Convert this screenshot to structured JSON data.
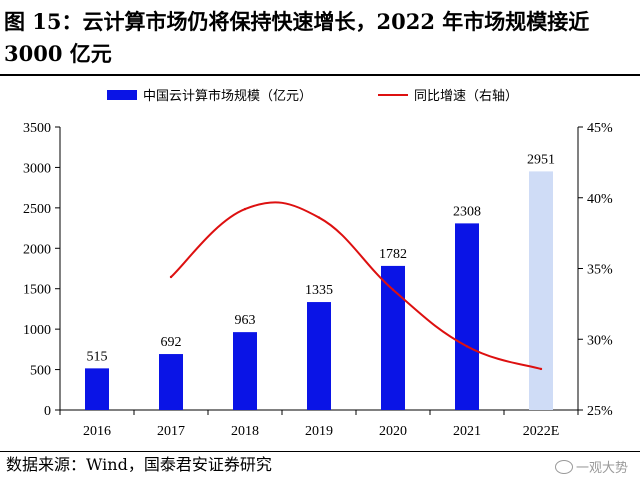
{
  "title": "图 15：云计算市场仍将保持快速增长，2022 年市场规模接近 3000 亿元",
  "source": "数据来源：Wind，国泰君安证券研究",
  "watermark": "一观大势",
  "colors": {
    "bar": "#0a14e6",
    "bar_estimate": "#cfdcf6",
    "line": "#dd1010"
  },
  "chart_data": {
    "type": "bar",
    "categories": [
      "2016",
      "2017",
      "2018",
      "2019",
      "2020",
      "2021",
      "2022E"
    ],
    "legend_position": "top",
    "series": [
      {
        "name": "中国云计算市场规模（亿元）",
        "type": "bar",
        "axis": "left",
        "values": [
          515,
          692,
          963,
          1335,
          1782,
          2308,
          2951
        ],
        "labels": [
          "515",
          "692",
          "963",
          "1335",
          "1782",
          "2308",
          "2951"
        ]
      },
      {
        "name": "同比增速（右轴）",
        "type": "line",
        "axis": "right",
        "unit": "%",
        "values": [
          null,
          34.4,
          39.2,
          38.6,
          33.5,
          29.5,
          27.9
        ]
      }
    ],
    "y_left": {
      "ylim": [
        0,
        3500
      ],
      "ticks": [
        "0",
        "500",
        "1000",
        "1500",
        "2000",
        "2500",
        "3000",
        "3500"
      ]
    },
    "y_right": {
      "ylim": [
        25,
        45
      ],
      "ticks": [
        "25%",
        "30%",
        "35%",
        "40%",
        "45%"
      ]
    },
    "grid": false
  }
}
